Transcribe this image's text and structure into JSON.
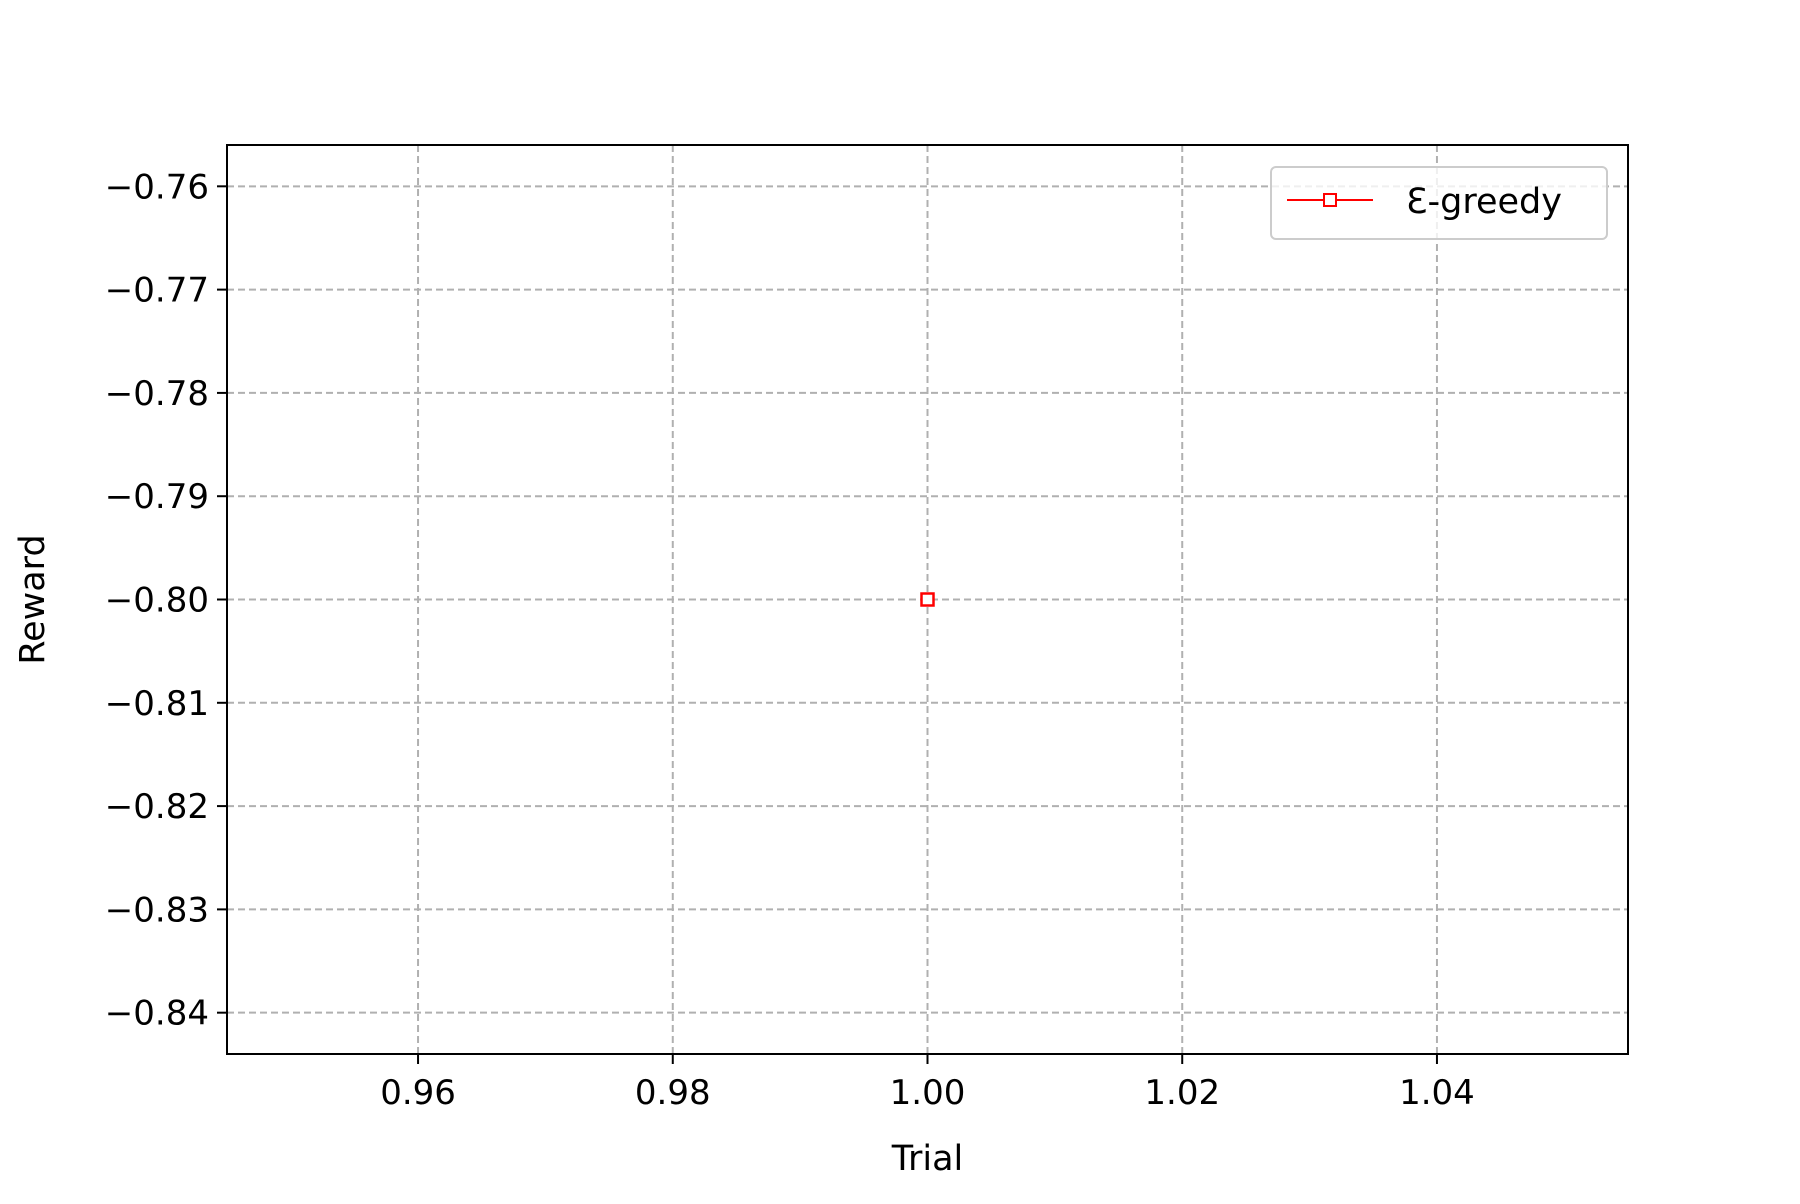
{
  "chart_data": {
    "type": "line",
    "title": "",
    "xlabel": "Trial",
    "ylabel": "Reward",
    "xlim": [
      0.945,
      1.055
    ],
    "ylim": [
      -0.844,
      -0.756
    ],
    "x_ticks": [
      0.96,
      0.98,
      1.0,
      1.02,
      1.04
    ],
    "x_tick_labels": [
      "0.96",
      "0.98",
      "1.00",
      "1.02",
      "1.04"
    ],
    "y_ticks": [
      -0.76,
      -0.77,
      -0.78,
      -0.79,
      -0.8,
      -0.81,
      -0.82,
      -0.83,
      -0.84
    ],
    "y_tick_labels": [
      "−0.76",
      "−0.77",
      "−0.78",
      "−0.79",
      "−0.80",
      "−0.81",
      "−0.82",
      "−0.83",
      "−0.84"
    ],
    "grid": true,
    "legend_position": "top-right",
    "series": [
      {
        "name": "Ɛ-greedy",
        "color": "#ff0000",
        "marker": "square-open",
        "x": [
          1.0
        ],
        "y": [
          -0.8
        ]
      }
    ]
  }
}
